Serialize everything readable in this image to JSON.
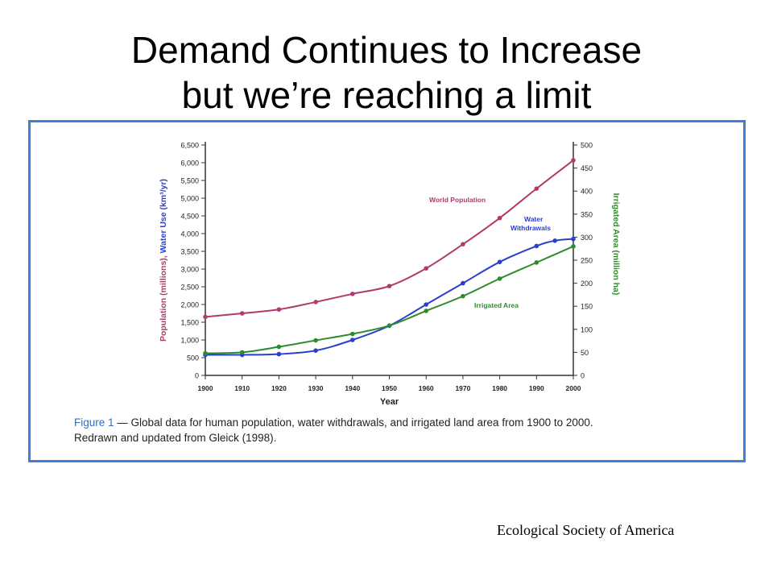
{
  "slide": {
    "title_line1": "Demand Continues to Increase",
    "title_line2": "but we’re reaching a limit",
    "source": "Ecological Society of America"
  },
  "figure": {
    "label": "Figure 1",
    "caption_line1": "— Global data for human population, water withdrawals, and irrigated land area from 1900 to 2000.",
    "caption_line2": "Redrawn and updated from Gleick (1998)."
  },
  "colors": {
    "frame": "#3f7fd6",
    "population": "#b03a6e",
    "water": "#2a3fd0",
    "irrigated": "#2e8b2e",
    "left_axis_title": "#b03a6e",
    "right_axis_title": "#2e8b2e"
  },
  "chart_data": {
    "type": "line",
    "xlabel": "Year",
    "ylabel_left_part1": "Population (millions),",
    "ylabel_left_part2": "Water Use (km³/yr)",
    "ylabel_right": "Irrigated Area (million ha)",
    "xlim": [
      1900,
      2000
    ],
    "ylim_left": [
      0,
      6500
    ],
    "ylim_right": [
      0,
      500
    ],
    "x_ticks": [
      "1900",
      "1910",
      "1920",
      "1930",
      "1940",
      "1950",
      "1960",
      "1970",
      "1980",
      "1990",
      "2000"
    ],
    "y_left_ticks": [
      "0",
      "500",
      "1,000",
      "1,500",
      "2,000",
      "2,500",
      "3,000",
      "3,500",
      "4,000",
      "4,500",
      "5,000",
      "5,500",
      "6,000",
      "6,500"
    ],
    "y_right_ticks": [
      "0",
      "50",
      "100",
      "150",
      "200",
      "250",
      "300",
      "350",
      "400",
      "450",
      "500"
    ],
    "series": [
      {
        "name": "World Population",
        "axis": "left",
        "x": [
          1900,
          1910,
          1920,
          1930,
          1940,
          1950,
          1960,
          1970,
          1980,
          1990,
          2000
        ],
        "y": [
          1650,
          1750,
          1860,
          2070,
          2300,
          2520,
          3020,
          3700,
          4440,
          5270,
          6070
        ]
      },
      {
        "name": "Water Withdrawals",
        "axis": "left",
        "x": [
          1900,
          1910,
          1920,
          1930,
          1940,
          1950,
          1960,
          1970,
          1980,
          1990,
          1995,
          2000
        ],
        "y": [
          580,
          580,
          600,
          700,
          1000,
          1400,
          2000,
          2600,
          3200,
          3650,
          3800,
          3850
        ]
      },
      {
        "name": "Irrigated Area",
        "axis": "right",
        "x": [
          1900,
          1910,
          1920,
          1930,
          1940,
          1950,
          1960,
          1970,
          1980,
          1990,
          2000
        ],
        "y": [
          48,
          50,
          62,
          76,
          90,
          108,
          140,
          172,
          210,
          245,
          280
        ]
      }
    ]
  }
}
